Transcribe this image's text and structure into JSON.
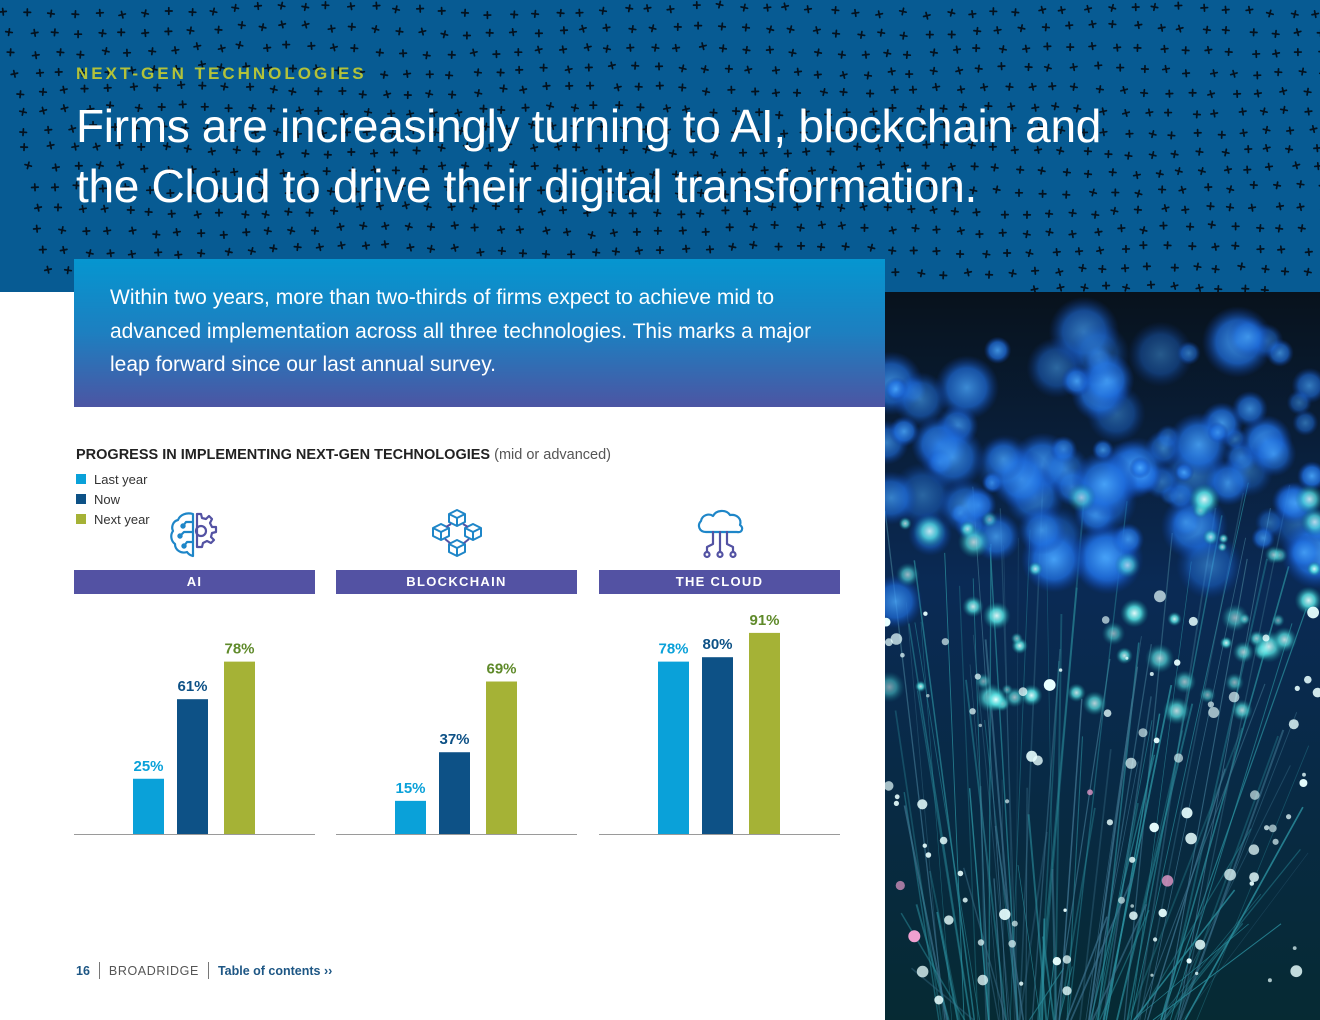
{
  "header": {
    "eyebrow": "NEXT-GEN TECHNOLOGIES",
    "headline": "Firms are increasingly turning to AI, blockchain and the Cloud to drive their digital transformation."
  },
  "intro": {
    "text": "Within two years, more than two-thirds of firms expect to achieve mid to advanced implementation across all three technologies. This marks a major leap forward since our last annual survey."
  },
  "chart_data": {
    "type": "bar",
    "title": "PROGRESS IN IMPLEMENTING NEXT-GEN TECHNOLOGIES",
    "subtitle": "(mid or advanced)",
    "categories": [
      "AI",
      "BLOCKCHAIN",
      "THE CLOUD"
    ],
    "series": [
      {
        "name": "Last year",
        "color": "#0aa1d9",
        "values": [
          25,
          15,
          78
        ]
      },
      {
        "name": "Now",
        "color": "#0d5186",
        "values": [
          61,
          37,
          80
        ]
      },
      {
        "name": "Next year",
        "color": "#a5b236",
        "values": [
          78,
          69,
          91
        ]
      }
    ],
    "value_labels": [
      [
        "25%",
        "15%",
        "78%"
      ],
      [
        "61%",
        "37%",
        "80%"
      ],
      [
        "78%",
        "69%",
        "91%"
      ]
    ],
    "ylim": [
      0,
      100
    ],
    "legend_position": "top-left"
  },
  "icons": [
    "brain-gear-icon",
    "blockchain-cubes-icon",
    "cloud-network-icon"
  ],
  "footer": {
    "page_number": "16",
    "brand": "BROADRIDGE",
    "toc_link": "Table of contents ››"
  },
  "colors": {
    "hero_blue": "#075b93",
    "accent_green": "#b3c23a",
    "header_purple": "#5352a3"
  }
}
